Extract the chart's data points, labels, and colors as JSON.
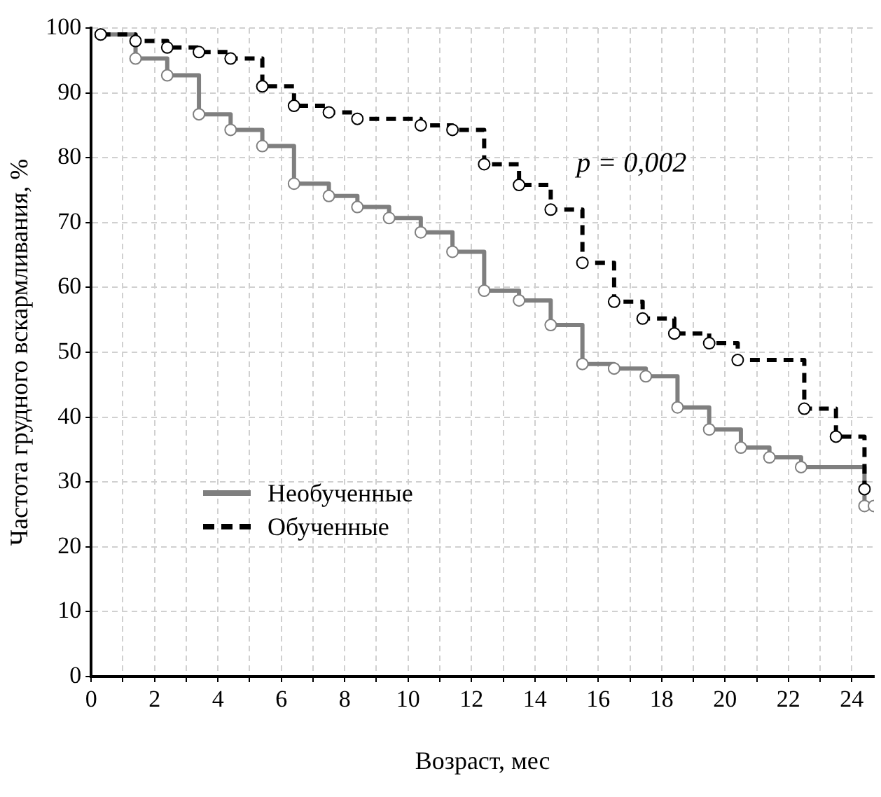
{
  "chart_data": {
    "type": "step",
    "xlabel": "Возраст, мес",
    "ylabel": "Частота грудного вскармливания, %",
    "annotations": [
      "p = 0,002"
    ],
    "xlim": [
      0,
      24.7
    ],
    "ylim": [
      0,
      100
    ],
    "xticks": [
      0,
      {
        "value": 1,
        "label": null
      },
      2,
      {
        "value": 3,
        "label": null
      },
      4,
      {
        "value": 5,
        "label": null
      },
      6,
      {
        "value": 7,
        "label": null
      },
      8,
      {
        "value": 9,
        "label": null
      },
      10,
      {
        "value": 11,
        "label": null
      },
      12,
      {
        "value": 13,
        "label": null
      },
      14,
      {
        "value": 15,
        "label": null
      },
      16,
      {
        "value": 17,
        "label": null
      },
      18,
      {
        "value": 19,
        "label": null
      },
      20,
      {
        "value": 21,
        "label": null
      },
      22,
      {
        "value": 23,
        "label": null
      },
      24
    ],
    "yticks": [
      0,
      10,
      20,
      30,
      40,
      50,
      60,
      70,
      80,
      90,
      100
    ],
    "grid": true,
    "legend": "bottom left",
    "marker": "circle",
    "series": [
      {
        "name": "Необученные",
        "color": "#7f7f7f",
        "line_style": "solid",
        "x": [
          0.3,
          1.4,
          2.4,
          3.4,
          4.4,
          5.4,
          6.4,
          7.5,
          8.4,
          9.4,
          10.4,
          11.4,
          12.4,
          13.5,
          14.5,
          15.5,
          16.5,
          17.5,
          18.5,
          19.5,
          20.5,
          21.4,
          22.4,
          24.4,
          24.7
        ],
        "values": [
          99,
          95.3,
          92.7,
          86.7,
          84.3,
          81.8,
          76,
          74.1,
          72.4,
          70.7,
          68.5,
          65.5,
          59.5,
          58,
          54.2,
          48.2,
          47.5,
          46.3,
          41.5,
          38.1,
          35.3,
          33.8,
          32.3,
          26.3,
          26.3
        ]
      },
      {
        "name": "Обученные",
        "color": "#000000",
        "line_style": "dashed",
        "x": [
          0.3,
          1.4,
          2.4,
          3.4,
          4.4,
          5.4,
          6.4,
          7.5,
          8.4,
          10.4,
          11.4,
          12.4,
          13.5,
          14.5,
          15.5,
          16.5,
          17.4,
          18.4,
          19.5,
          20.4,
          22.5,
          23.5,
          24.4
        ],
        "values": [
          99,
          98,
          97,
          96.3,
          95.3,
          91,
          88,
          87,
          86,
          85,
          84.3,
          79,
          75.8,
          72,
          63.8,
          57.8,
          55.2,
          52.9,
          51.4,
          48.8,
          41.3,
          37,
          28.9
        ]
      }
    ]
  }
}
